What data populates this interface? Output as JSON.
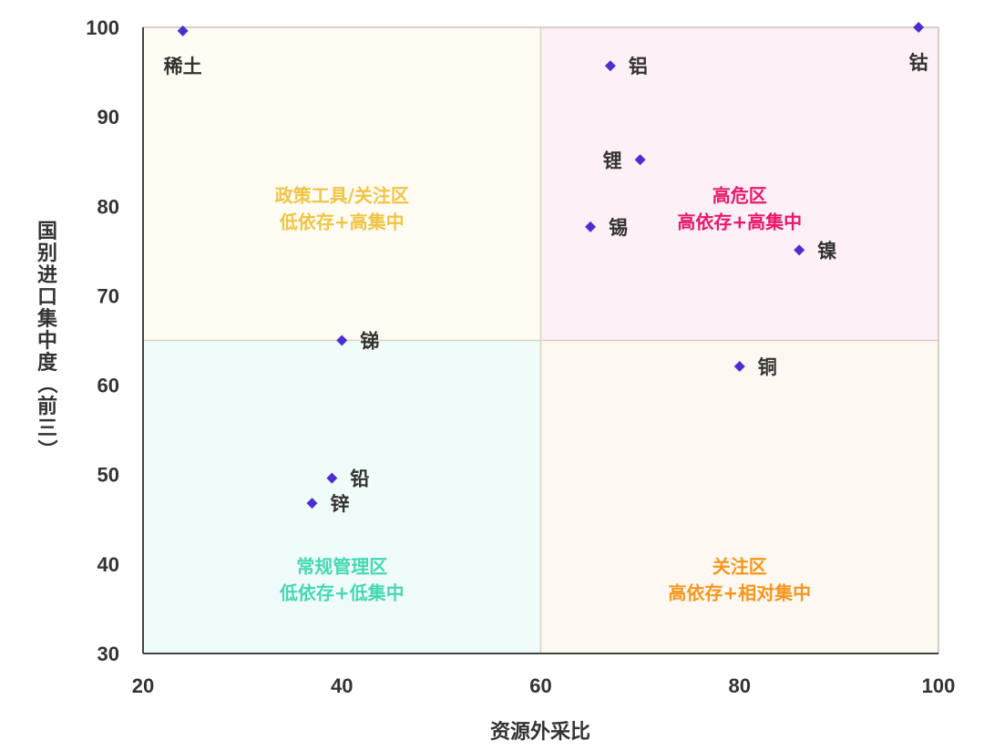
{
  "chart_data": {
    "type": "scatter",
    "title": "",
    "xlabel": "资源外采比",
    "ylabel": "国别进口集中度（前三）",
    "xlim": [
      20,
      100
    ],
    "ylim": [
      30,
      100
    ],
    "xticks": [
      20,
      40,
      60,
      80,
      100
    ],
    "yticks": [
      30,
      40,
      50,
      60,
      70,
      80,
      90,
      100
    ],
    "grid": false,
    "marker": "diamond",
    "marker_color": "#4a2fd0",
    "quadrant_split": {
      "x": 60,
      "y": 65
    },
    "quadrants": [
      {
        "position": "top-left",
        "lines": [
          "政策工具/关注区",
          "低依存+高集中"
        ],
        "text_color": "#f2c443",
        "fill": "#fffcf4"
      },
      {
        "position": "top-right",
        "lines": [
          "高危区",
          "高依存+高集中"
        ],
        "text_color": "#e8186c",
        "fill": "#fdf0f6"
      },
      {
        "position": "bottom-left",
        "lines": [
          "常规管理区",
          "低依存+低集中"
        ],
        "text_color": "#45d8b4",
        "fill": "#f0fcf9"
      },
      {
        "position": "bottom-right",
        "lines": [
          "关注区",
          "高依存+相对集中"
        ],
        "text_color": "#f7961b",
        "fill": "#fdf8f1"
      }
    ],
    "points": [
      {
        "label": "稀土",
        "x": 24,
        "y": 99.6,
        "label_side": "below"
      },
      {
        "label": "钴",
        "x": 98,
        "y": 100,
        "label_side": "below"
      },
      {
        "label": "铝",
        "x": 67,
        "y": 95.7,
        "label_side": "right"
      },
      {
        "label": "锂",
        "x": 70,
        "y": 85.2,
        "label_side": "left"
      },
      {
        "label": "锡",
        "x": 65,
        "y": 77.7,
        "label_side": "right"
      },
      {
        "label": "镍",
        "x": 86,
        "y": 75.1,
        "label_side": "right"
      },
      {
        "label": "锑",
        "x": 40,
        "y": 65,
        "label_side": "right"
      },
      {
        "label": "铜",
        "x": 80,
        "y": 62.1,
        "label_side": "right"
      },
      {
        "label": "铅",
        "x": 39,
        "y": 49.6,
        "label_side": "right"
      },
      {
        "label": "锌",
        "x": 37,
        "y": 46.8,
        "label_side": "right"
      }
    ]
  }
}
